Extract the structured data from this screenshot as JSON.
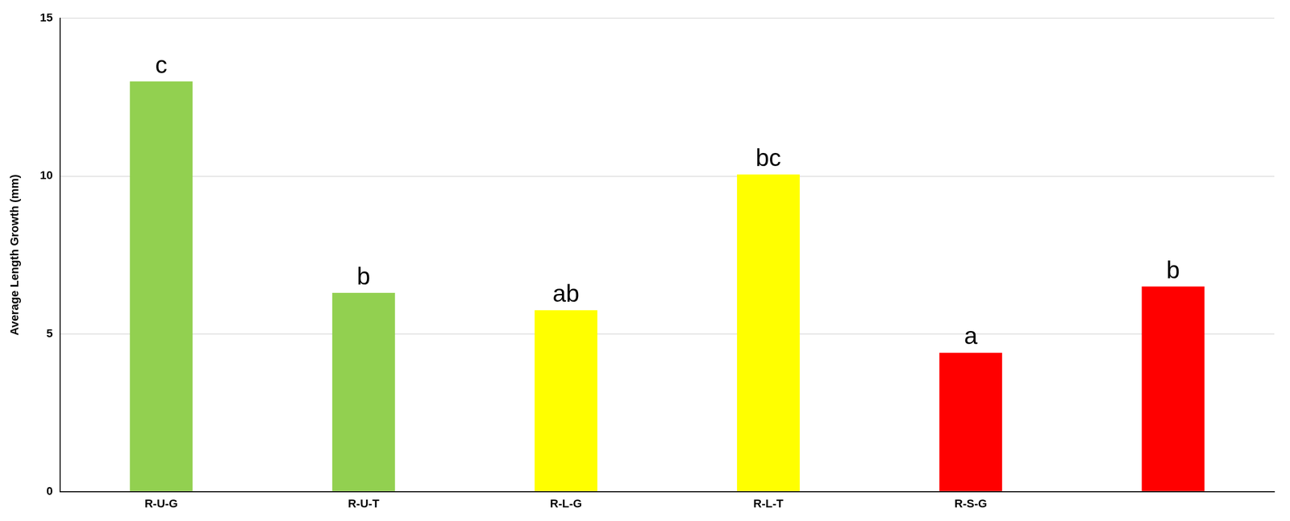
{
  "chart_data": {
    "type": "bar",
    "y_label": "Average Length Growth (mm)",
    "categories": [
      "R-U-G",
      "R-U-T",
      "R-L-G",
      "R-L-T",
      "R-S-G",
      null
    ],
    "values": [
      13.0,
      6.3,
      5.75,
      10.05,
      4.4,
      6.5
    ],
    "annotations": [
      "c",
      "b",
      "ab",
      "bc",
      "a",
      "b"
    ],
    "colors": [
      "#92d050",
      "#92d050",
      "#ffff00",
      "#ffff00",
      "#ff0000",
      "#ff0000"
    ],
    "ylim": [
      0,
      15
    ],
    "yticks": [
      0,
      5,
      10,
      15
    ],
    "grid": true
  }
}
